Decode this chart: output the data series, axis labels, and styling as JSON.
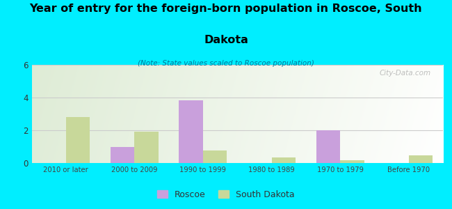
{
  "title_line1": "Year of entry for the foreign-born population in Roscoe, South",
  "title_line2": "Dakota",
  "subtitle": "(Note: State values scaled to Roscoe population)",
  "categories": [
    "2010 or later",
    "2000 to 2009",
    "1990 to 1999",
    "1980 to 1989",
    "1970 to 1979",
    "Before 1970"
  ],
  "roscoe_values": [
    0,
    1.0,
    3.85,
    0,
    2.0,
    0
  ],
  "sd_values": [
    2.8,
    1.9,
    0.75,
    0.35,
    0.15,
    0.45
  ],
  "roscoe_color": "#c9a0dc",
  "sd_color": "#c8d89a",
  "background_outer": "#00eeff",
  "ylim": [
    0,
    6
  ],
  "yticks": [
    0,
    2,
    4,
    6
  ],
  "bar_width": 0.35,
  "legend_roscoe": "Roscoe",
  "legend_sd": "South Dakota",
  "watermark": "City-Data.com"
}
